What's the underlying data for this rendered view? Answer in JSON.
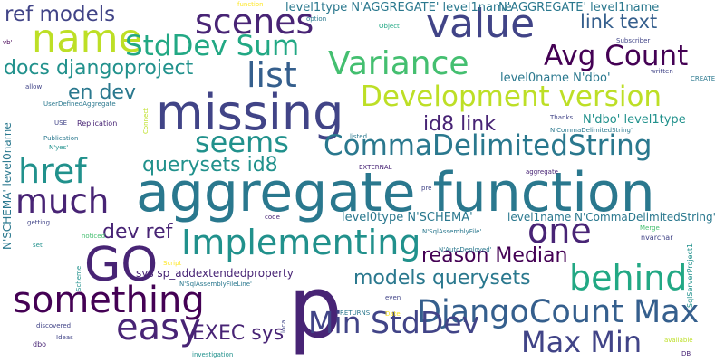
{
  "palette": {
    "dark_purple": "#440154",
    "indigo": "#482475",
    "blue_violet": "#414487",
    "steel_blue": "#355f8d",
    "teal_blue": "#2a788e",
    "teal": "#21918c",
    "sea_green": "#22a884",
    "green": "#44bf70",
    "light_green": "#7ad151",
    "yellow_green": "#bddf26",
    "yellow": "#fde725"
  },
  "words": {
    "aggregate_function": "aggregate function",
    "missing": "missing",
    "p": "p",
    "value": "value",
    "scenes": "scenes",
    "name": "name",
    "stddev_sum": "StdDev Sum",
    "list": "list",
    "variance": "Variance",
    "avg_count": "Avg Count",
    "development_version": "Development version",
    "commadelimitedstring": "CommaDelimitedString",
    "seems": "seems",
    "href": "href",
    "much": "much",
    "implementing": "Implementing",
    "go": "GO",
    "one": "one",
    "behind": "behind",
    "something": "something",
    "djangocount_max": "DjangoCount Max",
    "easy": "easy",
    "min_stddev": "Min StdDev",
    "max_min": "Max Min",
    "ref_models": "ref models",
    "docs_djangoproject": "docs djangoproject",
    "en_dev": "en dev",
    "dev_ref": "dev ref",
    "querysets_id8": "querysets id8",
    "id8_link": "id8 link",
    "link_text": "link text",
    "reason_median": "reason Median",
    "models_querysets": "models querysets",
    "exec_sys": "EXEC sys",
    "sys_sp_addextendedproperty": "sys sp_addextendedproperty",
    "level1type_aggregate_1": "level1type N'AGGREGATE' level1name",
    "naggregate_level1name": "N'AGGREGATE' level1name",
    "level0name_ndbo": "level0name N'dbo'",
    "ndbo_level1type": "N'dbo' level1type",
    "level0type_nschema": "level0type N'SCHEMA'",
    "level1name_ncds": "level1name N'CommaDelimitedString'",
    "nschema_level0name": "N'SCHEMA' level0name",
    "function_top": "function",
    "option": "option",
    "object": "Object",
    "subscriber": "Subscriber",
    "written": "written",
    "create": "CREATE",
    "vb": "vb'",
    "allow": "allow",
    "userdefinedaggregate": "UserDefinedAggregate",
    "use": "USE",
    "replication": "Replication",
    "publication": "Publication",
    "nyes": "N'yes'",
    "connect": "Connect",
    "listed": "listed",
    "thanks": "Thanks",
    "ncommadelimitedstring": "N'CommaDelimitedString'",
    "external": "EXTERNAL",
    "aggregate_small": "aggregate",
    "pre": "pre",
    "code": "code",
    "getting": "getting",
    "nsqlassemblyfile": "N'SqlAssemblyFile'",
    "nautodeployed": "N'AutoDeployed'",
    "merge": "Merge",
    "nvarchar": "nvarchar",
    "sqlserverproject1": "SqlServerProject1",
    "noticed": "noticed",
    "set": "set",
    "script": "Script",
    "scheme": "Scheme",
    "nsqlassemblyfileline": "N'SqlAssemblyFileLine'",
    "local": "local",
    "even": "even",
    "returns": "RETURNS",
    "date": "Date",
    "discovered": "discovered",
    "ideas": "Ideas",
    "dbo": "dbo",
    "investigation": "investigation",
    "available": "available",
    "db": "DB"
  }
}
